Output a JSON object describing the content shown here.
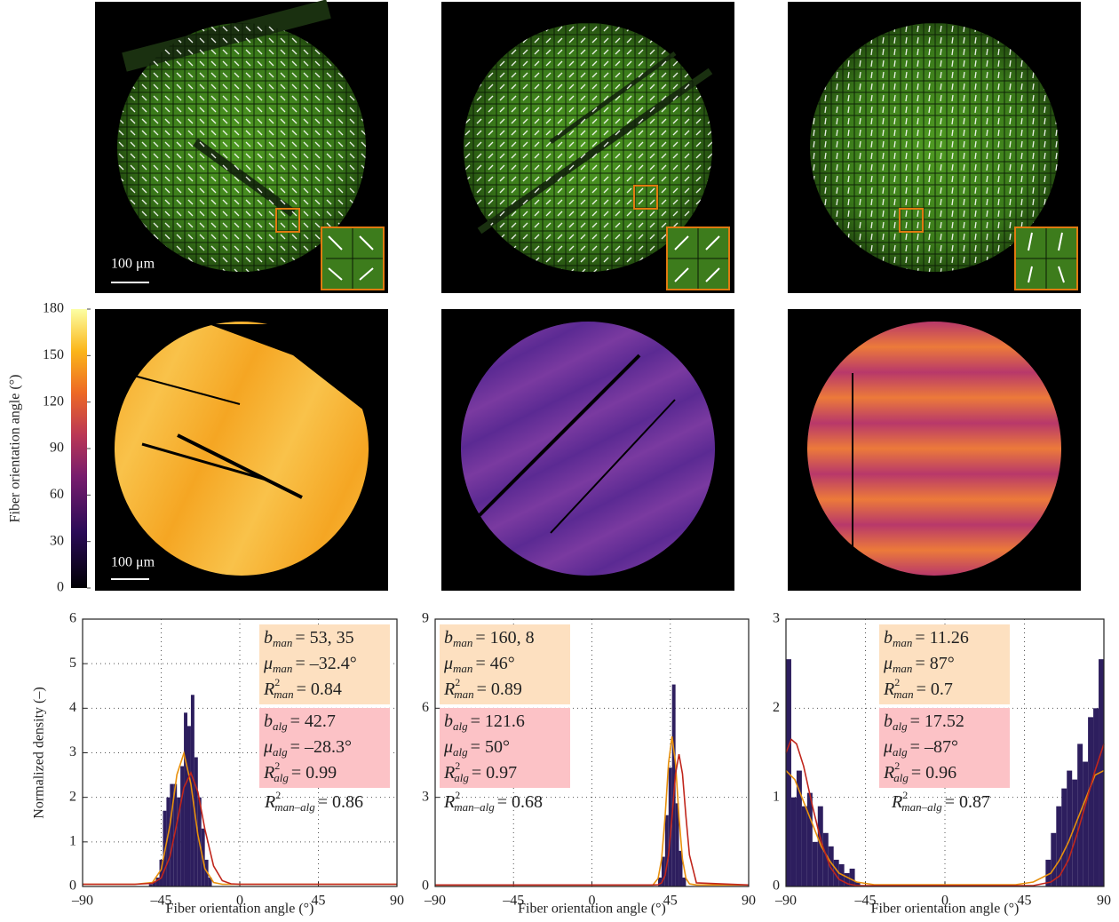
{
  "scale_bar": "100 μm",
  "colorbar": {
    "label": "Fiber orientation angle (°)",
    "lim": [
      0,
      180
    ],
    "ticks": [
      0,
      30,
      60,
      90,
      120,
      150,
      180
    ]
  },
  "chart_data": [
    {
      "type": "histogram",
      "xlabel": "Fiber orientation angle (°)",
      "ylabel": "Normalized density (–)",
      "xlim": [
        -90,
        90
      ],
      "xticks": [
        {
          "value": -90,
          "label": "–90"
        },
        {
          "value": -45,
          "label": "–45"
        },
        0,
        45,
        90
      ],
      "ylim": [
        0,
        6
      ],
      "yticks": [
        0,
        1,
        2,
        3,
        4,
        5,
        6
      ],
      "grid": true,
      "color": "#2d1e5e",
      "bins": [
        -52,
        -50,
        -48,
        -46,
        -44,
        -42,
        -40,
        -38,
        -36,
        -34,
        -32,
        -30,
        -28,
        -26,
        -24,
        -22,
        -20,
        -18,
        -16
      ],
      "values": [
        0.05,
        0.1,
        0.2,
        0.6,
        1.7,
        2.0,
        2.3,
        2.3,
        2.0,
        2.7,
        3.9,
        3.6,
        4.3,
        2.9,
        2.0,
        1.3,
        0.6,
        0.2
      ],
      "curves": [
        {
          "color": "#e8900c",
          "x": [
            -90,
            -60,
            -50,
            -45,
            -40,
            -36,
            -32,
            -28,
            -24,
            -20,
            -15,
            -10,
            0,
            90
          ],
          "values": [
            0.05,
            0.05,
            0.09,
            0.38,
            1.37,
            2.51,
            2.99,
            2.3,
            1.16,
            0.4,
            0.09,
            0.05,
            0.05,
            0.05
          ]
        },
        {
          "color": "#c0261c",
          "x": [
            -90,
            -60,
            -50,
            -45,
            -40,
            -36,
            -32,
            -28,
            -24,
            -20,
            -15,
            -10,
            -5,
            0,
            90
          ],
          "values": [
            0.05,
            0.05,
            0.07,
            0.19,
            0.67,
            1.42,
            2.22,
            2.55,
            2.12,
            1.29,
            0.46,
            0.13,
            0.06,
            0.05,
            0.05
          ]
        }
      ],
      "annotations": {
        "man": {
          "color": "#fde0c0",
          "lines": [
            {
              "symbol": "b",
              "sub": "man",
              "text": "= 53, 35"
            },
            {
              "symbol": "μ",
              "sub": "man",
              "text": "= –32.4°"
            },
            {
              "symbol": "R",
              "sup": "2",
              "sub": "man",
              "text": "= 0.84"
            }
          ]
        },
        "alg": {
          "color": "#fcc2c6",
          "lines": [
            {
              "symbol": "b",
              "sub": "alg",
              "text": "= 42.7"
            },
            {
              "symbol": "μ",
              "sub": "alg",
              "text": "= –28.3°"
            },
            {
              "symbol": "R",
              "sup": "2",
              "sub": "alg",
              "text": "= 0.99"
            }
          ]
        },
        "man_alg": {
          "symbol": "R",
          "sup": "2",
          "sub": "man–alg",
          "text": "= 0.86"
        }
      }
    },
    {
      "type": "histogram",
      "xlabel": "Fiber orientation angle (°)",
      "xlim": [
        -90,
        90
      ],
      "xticks": [
        {
          "value": -90,
          "label": "–90"
        },
        {
          "value": -45,
          "label": "–45"
        },
        0,
        45,
        90
      ],
      "ylim": [
        0,
        9
      ],
      "yticks": [
        0,
        3,
        6,
        9
      ],
      "grid": true,
      "color": "#2d1e5e",
      "bins": [
        38,
        40,
        42,
        44,
        46,
        48,
        50,
        52,
        54
      ],
      "values": [
        0.3,
        1.0,
        2.4,
        4.0,
        6.8,
        2.8,
        1.2,
        0.3
      ],
      "curves": [
        {
          "color": "#e8900c",
          "x": [
            -90,
            35,
            38,
            40,
            42,
            44,
            46,
            48,
            50,
            52,
            54,
            56,
            60,
            90
          ],
          "values": [
            0.05,
            0.05,
            0.27,
            0.91,
            2.34,
            4.15,
            5.05,
            4.15,
            2.34,
            0.91,
            0.27,
            0.09,
            0.05,
            0.05
          ]
        },
        {
          "color": "#c0261c",
          "x": [
            -90,
            35,
            38,
            40,
            42,
            44,
            46,
            48,
            50,
            52,
            54,
            56,
            60,
            90
          ],
          "values": [
            0.05,
            0.05,
            0.06,
            0.12,
            0.37,
            1.06,
            2.35,
            3.79,
            4.45,
            3.79,
            2.35,
            1.06,
            0.12,
            0.05
          ]
        }
      ],
      "annotations": {
        "man": {
          "color": "#fde0c0",
          "lines": [
            {
              "symbol": "b",
              "sub": "man",
              "text": "= 160, 8"
            },
            {
              "symbol": "μ",
              "sub": "man",
              "text": "= 46°"
            },
            {
              "symbol": "R",
              "sup": "2",
              "sub": "man",
              "text": "= 0.89"
            }
          ]
        },
        "alg": {
          "color": "#fcc2c6",
          "lines": [
            {
              "symbol": "b",
              "sub": "alg",
              "text": "= 121.6"
            },
            {
              "symbol": "μ",
              "sub": "alg",
              "text": "= 50°"
            },
            {
              "symbol": "R",
              "sup": "2",
              "sub": "alg",
              "text": "= 0.97"
            }
          ]
        },
        "man_alg": {
          "symbol": "R",
          "sup": "2",
          "sub": "man–alg",
          "text": "= 0.68"
        }
      }
    },
    {
      "type": "histogram",
      "xlabel": "Fiber orientation angle (°)",
      "xlim": [
        -90,
        90
      ],
      "xticks": [
        {
          "value": -90,
          "label": "–90"
        },
        {
          "value": -45,
          "label": "–45"
        },
        0,
        45,
        90
      ],
      "ylim": [
        0,
        3
      ],
      "yticks": [
        0,
        1,
        2,
        3
      ],
      "grid": true,
      "color": "#2d1e5e",
      "bins": [
        -90,
        -87,
        -84,
        -81,
        -78,
        -75,
        -72,
        -69,
        -66,
        -63,
        -60,
        -57,
        -54,
        -51,
        -48,
        -45,
        -42,
        -39,
        -36,
        -33,
        -30,
        -27,
        -24,
        -21,
        -18,
        -15,
        -12,
        -9,
        -6,
        -3,
        0,
        3,
        6,
        9,
        12,
        15,
        18,
        21,
        24,
        27,
        30,
        33,
        36,
        39,
        42,
        45,
        48,
        51,
        54,
        57,
        60,
        63,
        66,
        69,
        72,
        75,
        78,
        81,
        84,
        87,
        90
      ],
      "values": [
        2.55,
        1.0,
        1.3,
        0.9,
        1.05,
        0.5,
        0.9,
        0.6,
        0.45,
        0.3,
        0.25,
        0.15,
        0.2,
        0.05,
        0,
        0,
        0,
        0,
        0,
        0,
        0,
        0,
        0,
        0,
        0,
        0,
        0,
        0,
        0,
        0,
        0,
        0,
        0,
        0,
        0,
        0,
        0,
        0,
        0,
        0,
        0,
        0,
        0,
        0,
        0,
        0,
        0,
        0,
        0,
        0.3,
        0.6,
        0.9,
        1.1,
        1.3,
        1.2,
        1.6,
        1.4,
        1.9,
        2.0,
        2.55
      ],
      "curves": [
        {
          "color": "#e8900c",
          "x": [
            -90,
            -85,
            -80,
            -75,
            -70,
            -65,
            -60,
            -50,
            -40,
            0,
            40,
            50,
            60,
            65,
            70,
            75,
            80,
            85,
            90
          ],
          "values": [
            1.3,
            1.2,
            0.95,
            0.7,
            0.45,
            0.28,
            0.15,
            0.05,
            0.02,
            0.02,
            0.02,
            0.05,
            0.15,
            0.3,
            0.5,
            0.75,
            1.0,
            1.25,
            1.3
          ]
        },
        {
          "color": "#c0261c",
          "x": [
            -90,
            -87,
            -84,
            -80,
            -75,
            -70,
            -65,
            -60,
            -55,
            -50,
            50,
            60,
            65,
            70,
            75,
            80,
            85,
            90
          ],
          "values": [
            1.5,
            1.65,
            1.6,
            1.35,
            0.9,
            0.5,
            0.22,
            0.08,
            0.03,
            0.01,
            0.01,
            0.05,
            0.12,
            0.3,
            0.6,
            0.95,
            1.3,
            1.6
          ]
        }
      ],
      "annotations": {
        "man": {
          "color": "#fde0c0",
          "lines": [
            {
              "symbol": "b",
              "sub": "man",
              "text": "= 11.26"
            },
            {
              "symbol": "μ",
              "sub": "man",
              "text": "= 87°"
            },
            {
              "symbol": "R",
              "sup": "2",
              "sub": "man",
              "text": "= 0.7"
            }
          ]
        },
        "alg": {
          "color": "#fcc2c6",
          "lines": [
            {
              "symbol": "b",
              "sub": "alg",
              "text": "= 17.52"
            },
            {
              "symbol": "μ",
              "sub": "alg",
              "text": "= –87°"
            },
            {
              "symbol": "R",
              "sup": "2",
              "sub": "alg",
              "text": "= 0.96"
            }
          ]
        },
        "man_alg": {
          "symbol": "R",
          "sup": "2",
          "sub": "man–alg",
          "text": "= 0.87"
        }
      }
    }
  ]
}
